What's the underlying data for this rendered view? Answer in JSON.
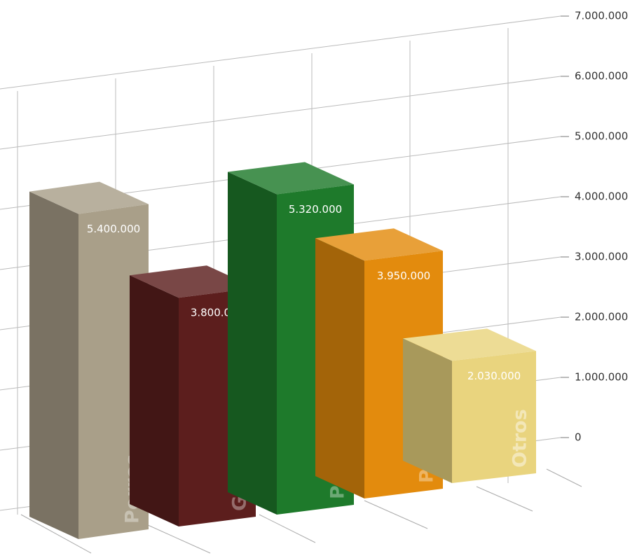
{
  "chart_data": {
    "type": "bar",
    "categories": [
      "Perros",
      "Gatos",
      "Pájaros",
      "Peces",
      "Otros"
    ],
    "values": [
      5400000,
      3800000,
      5320000,
      3950000,
      2030000
    ],
    "value_labels": [
      "5.400.000",
      "3.800.000",
      "5.320.000",
      "3.950.000",
      "2.030.000"
    ],
    "colors": [
      "#a99f89",
      "#5c1e1d",
      "#1e7a2b",
      "#e38b0d",
      "#e9d47e"
    ],
    "ylim": [
      0,
      7000000
    ],
    "yticks": [
      0,
      {
        "value": 1000000,
        "label": "1.000.000"
      },
      {
        "value": 2000000,
        "label": "2.000.000"
      },
      {
        "value": 3000000,
        "label": "3.000.000"
      },
      {
        "value": 4000000,
        "label": "4.000.000"
      },
      {
        "value": 5000000,
        "label": "5.000.000"
      },
      {
        "value": 6000000,
        "label": "6.000.000"
      },
      {
        "value": 7000000,
        "label": "7.000.000"
      }
    ],
    "grid": true
  }
}
